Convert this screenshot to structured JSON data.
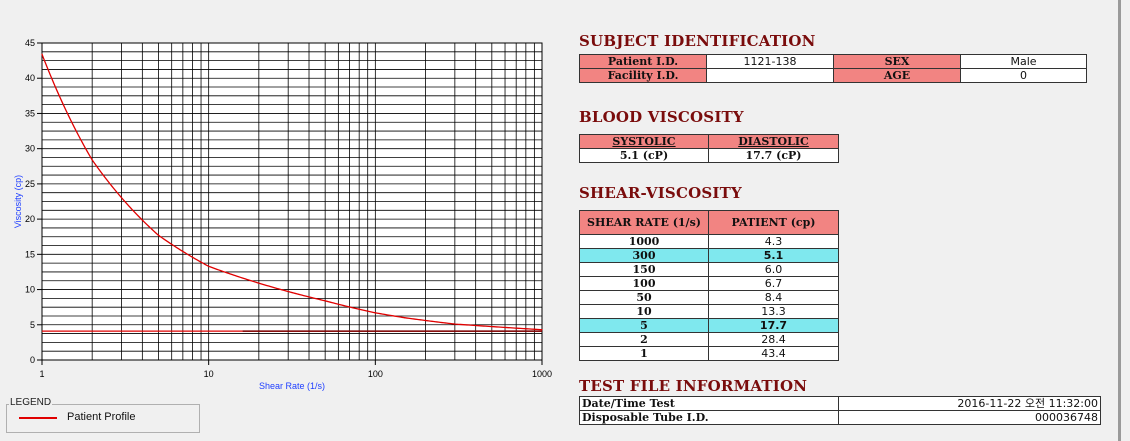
{
  "subject": {
    "title": "SUBJECT IDENTIFICATION",
    "patient_id_label": "Patient I.D.",
    "patient_id": "1121-138",
    "sex_label": "SEX",
    "sex": "Male",
    "facility_id_label": "Facility I.D.",
    "facility_id": "",
    "age_label": "AGE",
    "age": "0"
  },
  "blood": {
    "title": "BLOOD VISCOSITY",
    "systolic_label": "SYSTOLIC",
    "diastolic_label": "DIASTOLIC",
    "systolic": "5.1 (cP)",
    "diastolic": "17.7 (cP)"
  },
  "shear": {
    "title": "SHEAR-VISCOSITY",
    "col1": "SHEAR RATE (1/s)",
    "col2": "PATIENT (cp)",
    "rows": [
      {
        "rate": "1000",
        "value": "4.3"
      },
      {
        "rate": "300",
        "value": "5.1"
      },
      {
        "rate": "150",
        "value": "6.0"
      },
      {
        "rate": "100",
        "value": "6.7"
      },
      {
        "rate": "50",
        "value": "8.4"
      },
      {
        "rate": "10",
        "value": "13.3"
      },
      {
        "rate": "5",
        "value": "17.7"
      },
      {
        "rate": "2",
        "value": "28.4"
      },
      {
        "rate": "1",
        "value": "43.4"
      }
    ]
  },
  "testfile": {
    "title": "TEST FILE INFORMATION",
    "datetime_label": "Date/Time Test",
    "datetime": "2016-11-22  오전 11:32:00",
    "tube_label": "Disposable Tube I.D.",
    "tube": "000036748"
  },
  "legend": {
    "title": "LEGEND",
    "item": "Patient Profile"
  },
  "colors": {
    "header_bg": "#f28482",
    "highlight_row": "#7fe8ee",
    "section_title": "#7a0c0c",
    "curve": "#e00000",
    "axis_label": "#1f3fff"
  },
  "chart_data": {
    "type": "line",
    "xlabel": "Shear Rate (1/s)",
    "ylabel": "Viscosity (cp)",
    "x_scale": "log",
    "xlim": [
      1,
      1000
    ],
    "ylim": [
      0,
      45
    ],
    "x_ticks": [
      "1",
      "10",
      "100",
      "1000"
    ],
    "y_ticks": [
      "0",
      "5",
      "10",
      "15",
      "20",
      "25",
      "30",
      "35",
      "40",
      "45"
    ],
    "grid": true,
    "series": [
      {
        "name": "Patient Profile",
        "x": [
          1,
          2,
          5,
          10,
          50,
          100,
          150,
          300,
          1000
        ],
        "values": [
          43.4,
          28.4,
          17.7,
          13.3,
          8.4,
          6.7,
          6.0,
          5.1,
          4.3
        ]
      }
    ],
    "reference_line": 4.1
  }
}
